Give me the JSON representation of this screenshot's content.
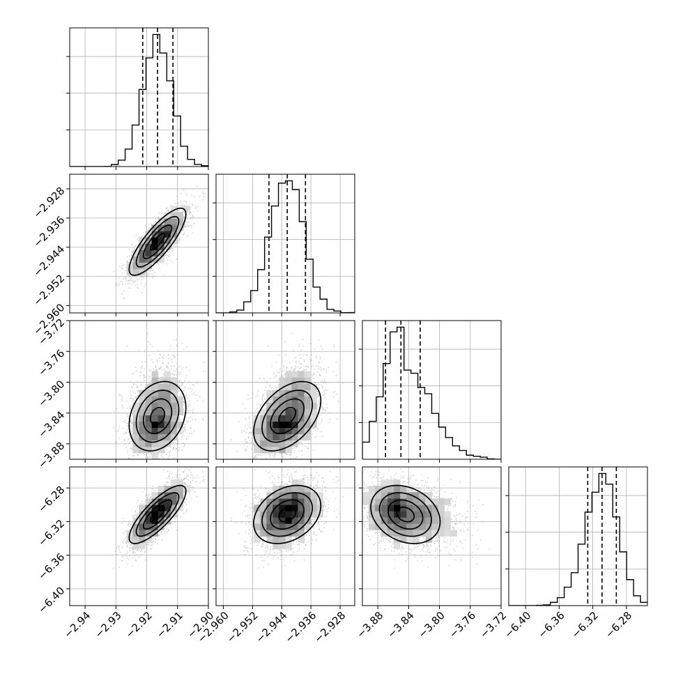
{
  "chart_data": {
    "type": "corner",
    "title": "",
    "n_params": 4,
    "param_labels": [
      "",
      "",
      "",
      ""
    ],
    "ranges": [
      [
        -2.945,
        -2.9
      ],
      [
        -2.962,
        -2.924
      ],
      [
        -3.9,
        -3.72
      ],
      [
        -6.42,
        -6.255
      ]
    ],
    "ticks": [
      {
        "values": [
          -2.94,
          -2.93,
          -2.92,
          -2.91,
          -2.9
        ],
        "labels": [
          "−2.94",
          "−2.93",
          "−2.92",
          "−2.91",
          "−2.90"
        ]
      },
      {
        "values": [
          -2.96,
          -2.952,
          -2.944,
          -2.936,
          -2.928
        ],
        "labels": [
          "−2.960",
          "−2.952",
          "−2.944",
          "−2.936",
          "−2.928"
        ]
      },
      {
        "values": [
          -3.88,
          -3.84,
          -3.8,
          -3.76,
          -3.72
        ],
        "labels": [
          "−3.88",
          "−3.84",
          "−3.80",
          "−3.76",
          "−3.72"
        ]
      },
      {
        "values": [
          -6.4,
          -6.36,
          -6.32,
          -6.28
        ],
        "labels": [
          "−6.40",
          "−6.36",
          "−6.32",
          "−6.28"
        ]
      }
    ],
    "means": [
      -2.9165,
      -2.9425,
      -3.8475,
      -6.309
    ],
    "sigmas": [
      0.0046,
      0.0046,
      0.0225,
      0.0173
    ],
    "skew": [
      0,
      0,
      0.6,
      -0.15
    ],
    "quantiles": [
      [
        -2.9213,
        -2.9165,
        -2.9115
      ],
      [
        -2.9475,
        -2.9425,
        -2.9375
      ],
      [
        -3.87,
        -3.85,
        -3.825
      ],
      [
        -6.326,
        -6.309,
        -6.292
      ]
    ],
    "correlations": [
      [
        "",
        "",
        "",
        ""
      ],
      [
        0.82,
        "",
        "",
        ""
      ],
      [
        0.25,
        0.45,
        "",
        ""
      ],
      [
        0.8,
        0.3,
        -0.25,
        ""
      ]
    ],
    "hist_bins": 20,
    "grid": true,
    "contour_levels": [
      0.118,
      0.393,
      0.675,
      0.865
    ]
  }
}
